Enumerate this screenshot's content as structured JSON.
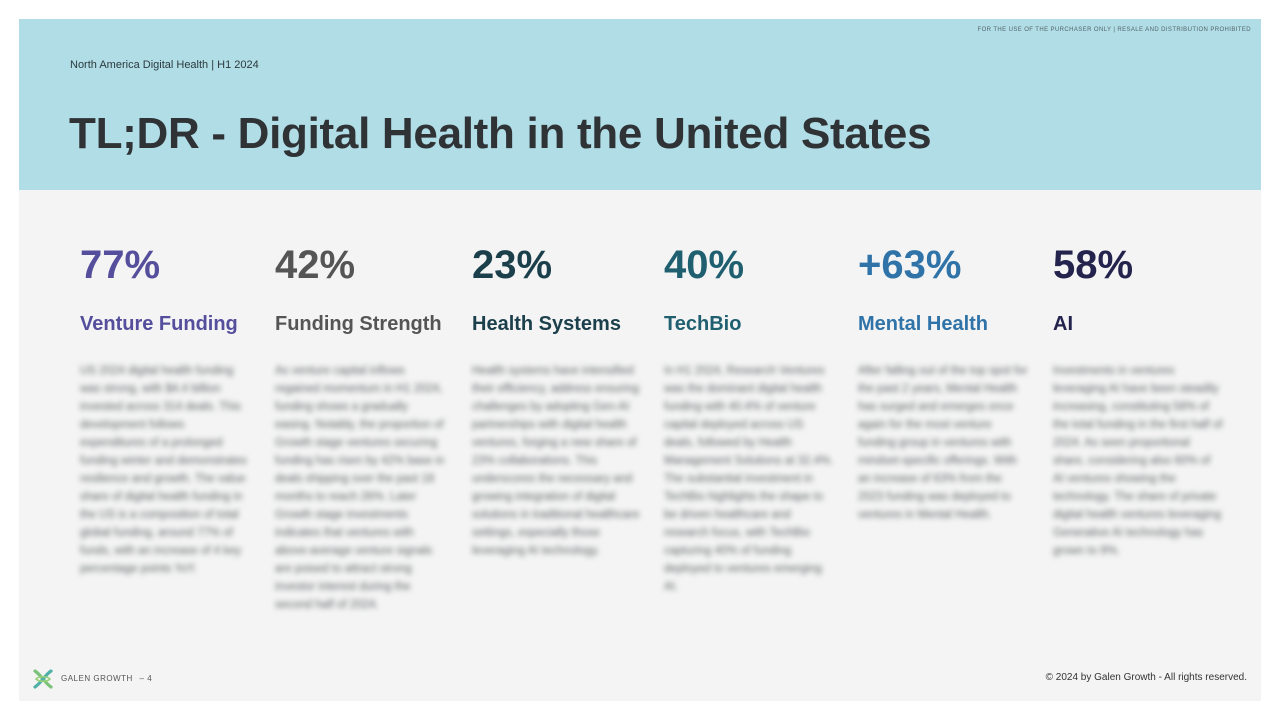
{
  "header": {
    "disclaimer": "FOR THE USE OF THE PURCHASER  ONLY  |  RESALE AND DISTRIBUTION  PROHIBITED",
    "subtitle": "North America Digital Health | H1 2024",
    "title": "TL;DR - Digital Health in the United States"
  },
  "stats": [
    {
      "value": "77%",
      "label": "Venture Funding",
      "color": "#544e9c",
      "body": "US 2024 digital health funding was strong, with $4.4 billion invested across 314 deals. This development follows expenditures of a prolonged funding winter and demonstrates resilience and growth. The value share of digital health funding in the US is a composition of total global funding, around 77% of funds, with an increase of 4 key percentage points YoY."
    },
    {
      "value": "42%",
      "label": "Funding Strength",
      "color": "#555555",
      "body": "As venture capital inflows regained momentum in H1 2024, funding shows a gradually easing. Notably, the proportion of Growth stage ventures securing funding has risen by 42% base in deals shipping over the past 18 months to reach 26%. Later Growth stage investments indicates that ventures with above-average venture signals are poised to attract strong investor interest during the second half of 2024."
    },
    {
      "value": "23%",
      "label": "Health Systems",
      "color": "#1b3f4b",
      "body": "Health systems have intensified their efficiency, address ensuring challenges by adopting Gen-AI partnerships with digital health ventures, forging a new share of 23% collaborations. This underscores the necessary and growing integration of digital solutions in traditional healthcare settings, especially those leveraging AI technology."
    },
    {
      "value": "40%",
      "label": "TechBio",
      "color": "#1f5f70",
      "body": "In H1 2024, Research Ventures was the dominant digital health funding with 40.4% of venture capital deployed across US deals, followed by Health Management Solutions at 32.4%. The substantial investment in TechBio highlights the shape to be driven healthcare and research focus, with TechBio capturing 40% of funding deployed to ventures emerging AI."
    },
    {
      "value": "+63%",
      "label": "Mental Health",
      "color": "#2f73a8",
      "body": "After falling out of the top spot for the past 2 years, Mental Health has surged and emerges once again for the most venture funding group in ventures with mindset-specific offerings. With an increase of 63% from the 2023 funding was deployed to ventures in Mental Health."
    },
    {
      "value": "58%",
      "label": "AI",
      "color": "#23234d",
      "body": "Investments in ventures leveraging AI have been steadily increasing, constituting 58% of the total funding in the first half of 2024. As seen proportional share, considering also 60% of AI ventures showing the technology. The share of private digital health ventures leveraging Generative AI technology has grown to 9%."
    }
  ],
  "footer": {
    "brand": "GALEN  GROWTH",
    "page": "– 4",
    "copyright": "© 2024 by Galen Growth  - All rights reserved."
  }
}
